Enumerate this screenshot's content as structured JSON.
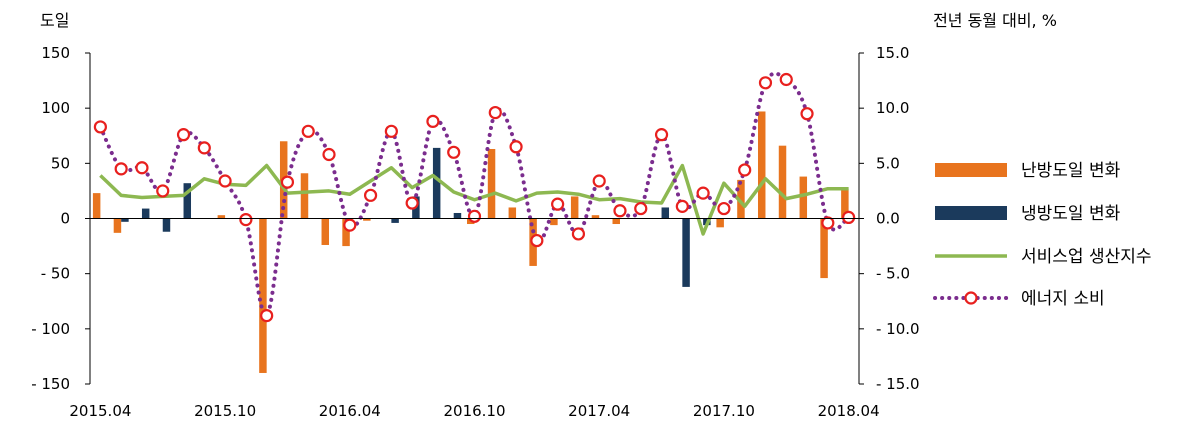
{
  "chart_data": {
    "type": "bar",
    "ylabel_left": "도일",
    "ylabel_right": "전년 동월 대비, %",
    "ylim_left": [
      -150,
      150
    ],
    "ylim_right": [
      -15.0,
      15.0
    ],
    "yticks_left": [
      "150",
      "100",
      "50",
      "0",
      "- 50",
      "- 100",
      "- 150"
    ],
    "yticks_right": [
      "15.0",
      "10.0",
      "5.0",
      "0.0",
      "- 5.0",
      "- 10.0",
      "- 15.0"
    ],
    "xtick_labels": [
      "2015.04",
      "2015.10",
      "2016.04",
      "2016.10",
      "2017.04",
      "2017.10",
      "2018.04"
    ],
    "categories": [
      "2015.04",
      "2015.05",
      "2015.06",
      "2015.07",
      "2015.08",
      "2015.09",
      "2015.10",
      "2015.11",
      "2015.12",
      "2016.01",
      "2016.02",
      "2016.03",
      "2016.04",
      "2016.05",
      "2016.06",
      "2016.07",
      "2016.08",
      "2016.09",
      "2016.10",
      "2016.11",
      "2016.12",
      "2017.01",
      "2017.02",
      "2017.03",
      "2017.04",
      "2017.05",
      "2017.06",
      "2017.07",
      "2017.08",
      "2017.09",
      "2017.10",
      "2017.11",
      "2017.12",
      "2018.01",
      "2018.02",
      "2018.03",
      "2018.04"
    ],
    "series": [
      {
        "name": "난방도일 변화",
        "axis": "left",
        "kind": "bar",
        "color": "#E8741E",
        "values": [
          23,
          -13,
          0,
          0,
          0,
          0,
          3,
          0,
          -140,
          70,
          41,
          -24,
          -25,
          -2,
          0,
          0,
          0,
          0,
          -5,
          63,
          10,
          -43,
          -6,
          20,
          3,
          -5,
          0,
          0,
          0,
          0,
          -8,
          35,
          97,
          66,
          38,
          -54,
          27
        ]
      },
      {
        "name": "냉방도일 변화",
        "axis": "left",
        "kind": "bar",
        "color": "#1B3A5C",
        "values": [
          0,
          -3,
          9,
          -12,
          32,
          0,
          0,
          0,
          0,
          0,
          0,
          0,
          0,
          0,
          -4,
          20,
          64,
          5,
          0,
          0,
          0,
          0,
          0,
          0,
          0,
          0,
          0,
          10,
          -62,
          -6,
          0,
          0,
          0,
          0,
          0,
          0,
          0
        ]
      },
      {
        "name": "서비스업 생산지수",
        "axis": "right",
        "kind": "line",
        "color": "#8DB851",
        "values": [
          3.9,
          2.1,
          1.9,
          2.0,
          2.1,
          3.6,
          3.1,
          3.0,
          4.8,
          2.3,
          2.4,
          2.5,
          2.2,
          3.4,
          4.6,
          2.8,
          3.9,
          2.4,
          1.7,
          2.3,
          1.6,
          2.3,
          2.4,
          2.2,
          1.7,
          1.8,
          1.5,
          1.4,
          4.8,
          -1.4,
          3.2,
          1.1,
          3.6,
          1.8,
          2.2,
          2.7,
          2.7
        ]
      },
      {
        "name": "에너지 소비",
        "axis": "right",
        "kind": "dotted-line-markers",
        "color": "#7B2D8E",
        "marker_color": "#E8201E",
        "values": [
          8.3,
          4.5,
          4.6,
          2.5,
          7.6,
          6.4,
          3.4,
          -0.1,
          -8.8,
          3.3,
          7.9,
          5.8,
          -0.6,
          2.1,
          7.9,
          1.4,
          8.8,
          6.0,
          0.2,
          9.6,
          6.5,
          -2.0,
          1.3,
          -1.4,
          3.4,
          0.7,
          0.9,
          7.6,
          1.1,
          2.3,
          0.9,
          4.4,
          12.3,
          12.6,
          9.5,
          -0.4,
          0.1
        ]
      }
    ],
    "legend": [
      "난방도일 변화",
      "냉방도일 변화",
      "서비스업 생산지수",
      "에너지 소비"
    ],
    "legend_position": "right",
    "grid": false
  }
}
